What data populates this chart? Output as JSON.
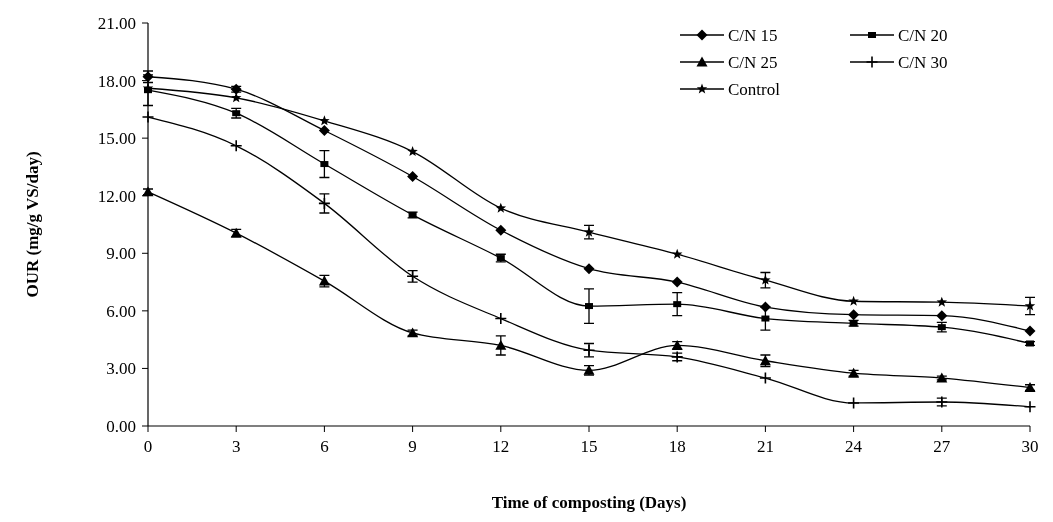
{
  "chart_data": {
    "type": "line",
    "xlabel": "Time of composting  (Days)",
    "ylabel": "OUR (mg/g VS/day)",
    "x": [
      0,
      3,
      6,
      9,
      12,
      15,
      18,
      21,
      24,
      27,
      30
    ],
    "xlim": [
      0,
      30
    ],
    "xticks": [
      0,
      3,
      6,
      9,
      12,
      15,
      18,
      21,
      24,
      27,
      30
    ],
    "ylim": [
      0,
      21
    ],
    "yticks": [
      {
        "value": 0,
        "label": "0.00"
      },
      {
        "value": 3,
        "label": "3.00"
      },
      {
        "value": 6,
        "label": "6.00"
      },
      {
        "value": 9,
        "label": "9.00"
      },
      {
        "value": 12,
        "label": "12.00"
      },
      {
        "value": 15,
        "label": "15.00"
      },
      {
        "value": 18,
        "label": "18.00"
      },
      {
        "value": 21,
        "label": "21.00"
      }
    ],
    "grid": false,
    "legend": "top right",
    "line_style": "solid",
    "series": [
      {
        "name": "C/N 15",
        "color": "#000000",
        "marker": "diamond",
        "values": [
          18.2,
          17.55,
          15.4,
          13.0,
          10.2,
          8.2,
          7.5,
          6.2,
          5.8,
          5.75,
          4.95
        ],
        "errors": [
          0.3,
          0.15,
          null,
          null,
          null,
          null,
          null,
          null,
          null,
          null,
          null
        ]
      },
      {
        "name": "C/N 20",
        "color": "#000000",
        "marker": "square",
        "values": [
          17.5,
          16.3,
          13.65,
          11.0,
          8.75,
          6.25,
          6.35,
          5.6,
          5.35,
          5.15,
          4.3
        ],
        "errors": [
          0.8,
          0.25,
          0.7,
          0.15,
          0.2,
          0.9,
          0.6,
          0.6,
          0.15,
          0.25,
          0.1
        ]
      },
      {
        "name": "C/N 25",
        "color": "#000000",
        "marker": "triangle",
        "values": [
          12.2,
          10.05,
          7.55,
          4.85,
          4.2,
          2.9,
          4.2,
          3.4,
          2.75,
          2.5,
          2.0
        ],
        "errors": [
          0.15,
          0.2,
          0.3,
          0.15,
          0.5,
          0.25,
          0.2,
          0.3,
          0.15,
          0.1,
          0.15
        ]
      },
      {
        "name": "C/N 30",
        "color": "#000000",
        "marker": "cross",
        "values": [
          16.1,
          14.6,
          11.6,
          7.8,
          5.6,
          3.95,
          3.6,
          2.5,
          1.2,
          1.25,
          1.0
        ],
        "errors": [
          null,
          null,
          0.5,
          0.3,
          null,
          0.35,
          0.2,
          null,
          null,
          0.2,
          null
        ]
      },
      {
        "name": "Control",
        "color": "#000000",
        "marker": "star",
        "values": [
          17.6,
          17.1,
          15.9,
          14.3,
          11.35,
          10.1,
          8.95,
          7.6,
          6.5,
          6.45,
          6.25
        ],
        "errors": [
          null,
          null,
          null,
          null,
          null,
          0.35,
          null,
          0.4,
          null,
          null,
          0.45
        ]
      }
    ]
  }
}
